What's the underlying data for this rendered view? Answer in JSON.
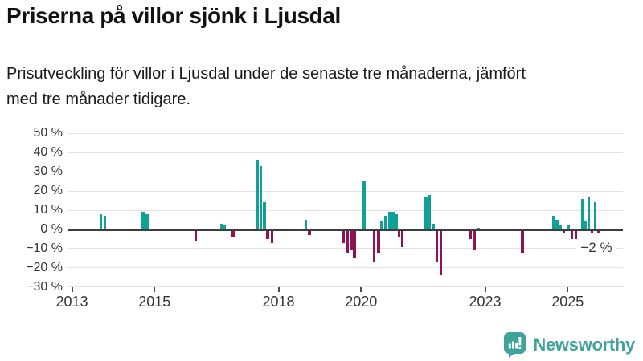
{
  "header": {
    "title": "Priserna på villor sjönk i Ljusdal",
    "subtitle_lines": [
      "Prisutveckling för villor i Ljusdal under de senaste tre månaderna, jämfört",
      "med tre månader tidigare."
    ]
  },
  "chart_data": {
    "type": "bar",
    "title": "Priserna på villor sjönk i Ljusdal",
    "subtitle": "Prisutveckling för villor i Ljusdal under de senaste tre månaderna, jämfört med tre månader tidigare.",
    "xlabel": "",
    "ylabel": "",
    "unit": "%",
    "grid": true,
    "xlim": [
      2012.9,
      2026.35
    ],
    "ylim": [
      -30,
      50
    ],
    "x": [
      2013.7,
      2013.8,
      2014.72,
      2014.82,
      2016.0,
      2016.62,
      2016.7,
      2016.9,
      2017.48,
      2017.57,
      2017.66,
      2017.74,
      2017.84,
      2018.66,
      2018.75,
      2019.58,
      2019.67,
      2019.76,
      2019.84,
      2020.07,
      2020.32,
      2020.42,
      2020.5,
      2020.59,
      2020.68,
      2020.77,
      2020.85,
      2020.92,
      2021.0,
      2021.57,
      2021.66,
      2021.75,
      2021.83,
      2021.93,
      2022.65,
      2022.75,
      2022.84,
      2023.9,
      2024.66,
      2024.74,
      2024.83,
      2024.91,
      2025.02,
      2025.1,
      2025.2,
      2025.35,
      2025.43,
      2025.51,
      2025.59,
      2025.67,
      2025.75
    ],
    "values": [
      8,
      7,
      9,
      8,
      -6,
      3,
      2,
      -4,
      36,
      33,
      14,
      -5,
      -7,
      5,
      -3,
      -7,
      -12,
      -11,
      -15,
      25,
      -17,
      -12,
      4,
      7,
      9,
      9,
      8,
      -4,
      -9,
      17,
      18,
      3,
      -17,
      -24,
      -5,
      -11,
      1,
      -12,
      7,
      5,
      2,
      -2,
      2,
      -5,
      -5,
      16,
      4,
      17,
      -2,
      14,
      -2
    ],
    "positive_color": "#0fa096",
    "negative_color": "#8f1350",
    "y_axis": {
      "ticks": [
        {
          "value": 50,
          "label": "50 %"
        },
        {
          "value": 40,
          "label": "40 %"
        },
        {
          "value": 30,
          "label": "30 %"
        },
        {
          "value": 20,
          "label": "20 %"
        },
        {
          "value": 10,
          "label": "10 %"
        },
        {
          "value": 0,
          "label": "0 %"
        },
        {
          "value": -10,
          "label": "−10 %"
        },
        {
          "value": -20,
          "label": "−20 %"
        },
        {
          "value": -30,
          "label": "−30 %"
        }
      ]
    },
    "x_axis": {
      "ticks": [
        {
          "value": 2013,
          "label": "2013"
        },
        {
          "value": 2015,
          "label": "2015"
        },
        {
          "value": 2018,
          "label": "2018"
        },
        {
          "value": 2020,
          "label": "2020"
        },
        {
          "value": 2023,
          "label": "2023"
        },
        {
          "value": 2025,
          "label": "2025"
        }
      ]
    },
    "annotation": {
      "label": "−2 %",
      "refers_to_last_value": -2
    }
  },
  "footer": {
    "brand": "Newsworthy",
    "logo_icon": "bar-chart-speech-bubble-icon",
    "brand_color": "#3fa39b"
  }
}
